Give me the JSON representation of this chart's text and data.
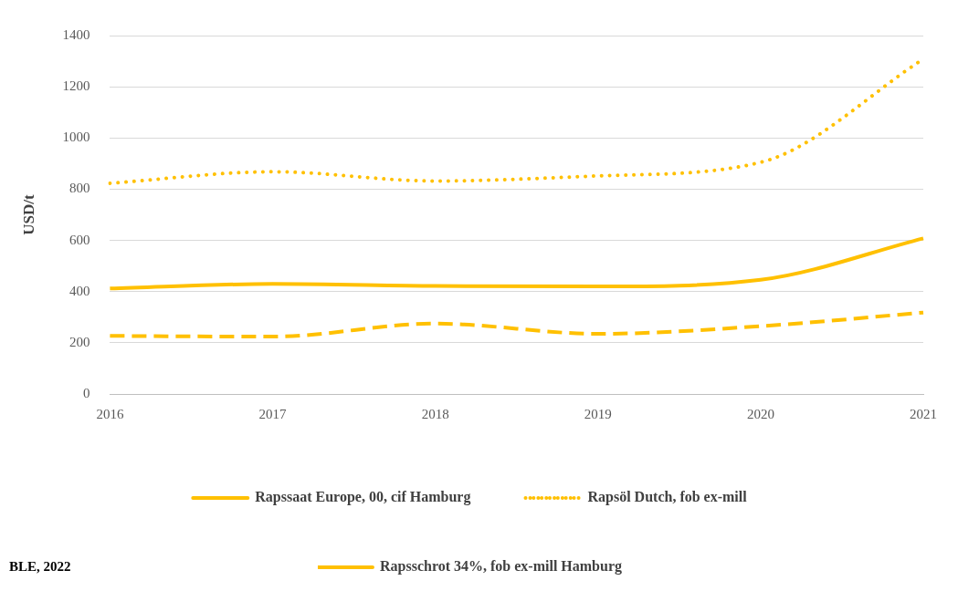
{
  "chart_data": {
    "type": "line",
    "ylabel": "USD/t",
    "categories": [
      "2016",
      "2017",
      "2018",
      "2019",
      "2020",
      "2021"
    ],
    "series": [
      {
        "name": "Rapssaat Europe, 00, cif Hamburg",
        "color": "#ffc000",
        "line_style": "solid",
        "values": [
          412,
          430,
          422,
          420,
          446,
          608
        ]
      },
      {
        "name": "Rapsöl Dutch, fob ex-mill",
        "color": "#ffc000",
        "line_style": "dotted",
        "values": [
          823,
          868,
          832,
          852,
          905,
          1308
        ]
      },
      {
        "name": "Rapsschrot 34%, fob ex-mill Hamburg",
        "color": "#ffc000",
        "line_style": "dashed",
        "values": [
          227,
          224,
          275,
          235,
          265,
          318
        ]
      }
    ],
    "ylim": [
      0,
      1400
    ],
    "yticks": [
      0,
      200,
      400,
      600,
      800,
      1000,
      1200,
      1400
    ],
    "grid": "y",
    "legend": "bottom",
    "marker": "none",
    "annotations": [
      "BLE, 2022"
    ]
  }
}
